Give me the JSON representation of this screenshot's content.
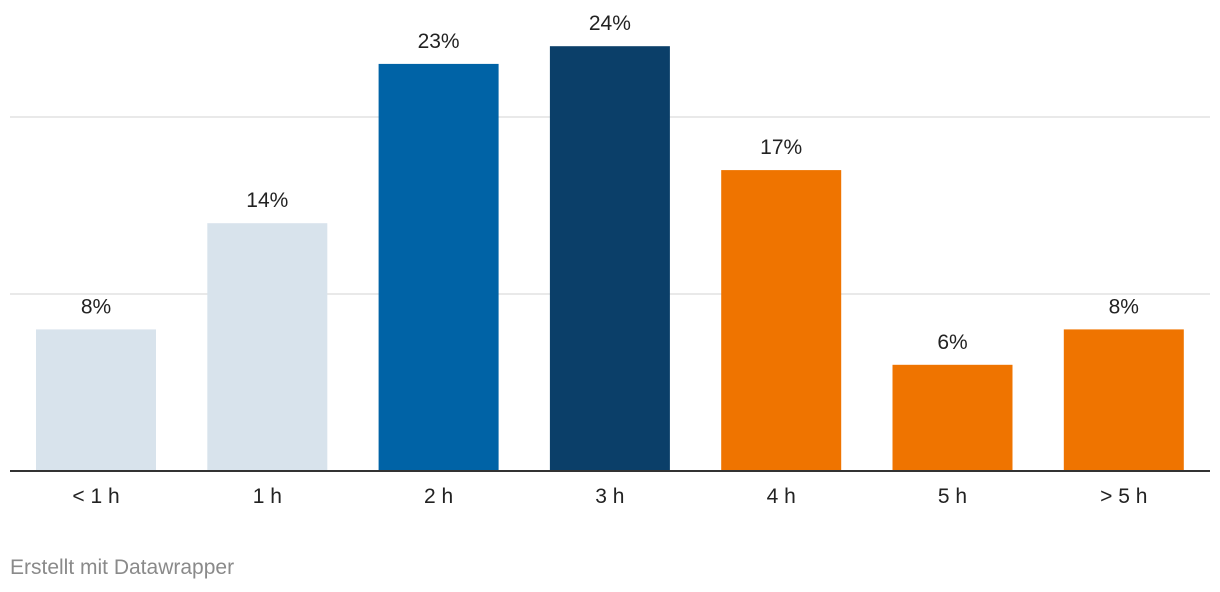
{
  "chart_data": {
    "type": "bar",
    "categories": [
      "< 1 h",
      "1 h",
      "2 h",
      "3 h",
      "4 h",
      "5 h",
      "> 5 h"
    ],
    "values": [
      8,
      14,
      23,
      24,
      17,
      6,
      8
    ],
    "value_labels": [
      "8%",
      "14%",
      "23%",
      "24%",
      "17%",
      "6%",
      "8%"
    ],
    "colors": [
      "#d8e3ec",
      "#d8e3ec",
      "#0063a6",
      "#0b3f69",
      "#ef7400",
      "#ef7400",
      "#ef7400"
    ],
    "ylim": [
      0,
      24
    ],
    "grid": true,
    "gridlines": [
      10,
      20
    ],
    "title": "",
    "xlabel": "",
    "ylabel": ""
  },
  "footer": {
    "credit": "Erstellt mit Datawrapper"
  }
}
